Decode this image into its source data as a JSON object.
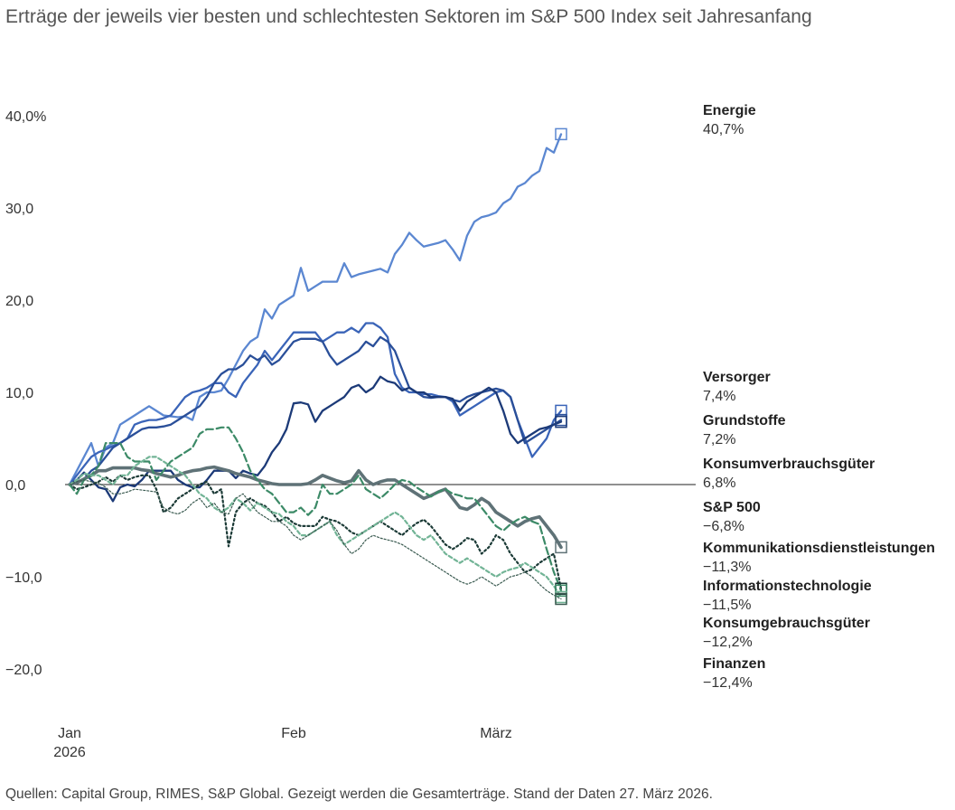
{
  "title": "Erträge der jeweils vier besten und schlechtesten Sektoren im S&P 500 Index seit Jahresanfang",
  "source": "Quellen: Capital Group, RIMES, S&P Global. Gezeigt werden die Gesamterträge. Stand der Daten 27. März 2026.",
  "chart_data": {
    "type": "line",
    "title": "Erträge der jeweils vier besten und schlechtesten Sektoren im S&P 500 Index seit Jahresanfang",
    "xlabel": "",
    "ylabel": "",
    "ylim": [
      -23,
      43
    ],
    "grid": false,
    "x": [
      0,
      1,
      2,
      3,
      4,
      5,
      6,
      7,
      8,
      9,
      10,
      11,
      12,
      13,
      14,
      15,
      16,
      17,
      18,
      19,
      20,
      21,
      22,
      23,
      24,
      25,
      26,
      27,
      28,
      29,
      30,
      31,
      32,
      33,
      34,
      35,
      36,
      37,
      38,
      39,
      40,
      41,
      42,
      43,
      44,
      45,
      46,
      47,
      48,
      49,
      50,
      51,
      52,
      53,
      54,
      55,
      56,
      57,
      58,
      59,
      60,
      61,
      62,
      63,
      64,
      65,
      66,
      67,
      68,
      69,
      70,
      71,
      72,
      73,
      74,
      75,
      76,
      77,
      78,
      79,
      80,
      81,
      82,
      83,
      84,
      85,
      86
    ],
    "x_ticks": [
      {
        "x": 0,
        "label": "Jan",
        "label2": "2026"
      },
      {
        "x": 31,
        "label": "Feb",
        "label2": ""
      },
      {
        "x": 59,
        "label": "März",
        "label2": ""
      }
    ],
    "y_ticks": [
      {
        "value": 40,
        "label": "40,0%"
      },
      {
        "value": 30,
        "label": "30,0"
      },
      {
        "value": 20,
        "label": "20,0"
      },
      {
        "value": 10,
        "label": "10,0"
      },
      {
        "value": 0,
        "label": "0,0"
      },
      {
        "value": -10,
        "label": "−10,0"
      },
      {
        "value": -20,
        "label": "−20,0"
      }
    ],
    "series": [
      {
        "name": "Energie",
        "end_label": "40,7%",
        "color": "#5b87d1",
        "dash": "",
        "width": 2.3,
        "values": [
          0,
          1.5,
          3,
          4.5,
          2,
          4,
          4.5,
          6.5,
          7,
          7.5,
          8,
          8.5,
          8,
          7.5,
          7.4,
          7.3,
          7.4,
          7,
          9.5,
          10,
          10,
          10.2,
          11.5,
          13,
          14.5,
          15.5,
          16,
          19,
          18,
          19.5,
          20,
          20.5,
          23.5,
          21,
          21.5,
          22,
          22,
          22,
          24,
          22.5,
          22.8,
          23,
          23.2,
          23.4,
          23,
          25,
          26,
          27.3,
          26.5,
          25.8,
          26,
          26.2,
          26.5,
          25.5,
          24.3,
          27,
          28.5,
          29,
          29.2,
          29.5,
          30.5,
          31,
          32.3,
          32.7,
          33.5,
          34,
          36.5,
          36,
          38,
          40.7,
          40.7,
          40.7,
          40.7,
          40.7,
          40.7,
          40.7,
          40.7,
          40.7,
          40.7,
          40.7,
          40.7,
          40.7,
          40.7,
          40.7,
          40.7,
          40.7,
          40.7
        ]
      },
      {
        "name": "Versorger",
        "end_label": "7,4%",
        "color": "#3a64b8",
        "dash": "",
        "width": 2.3,
        "values": [
          0,
          1,
          2,
          3,
          3.5,
          3.8,
          4.2,
          4.5,
          5,
          6.5,
          6.8,
          7,
          7,
          7.2,
          7.5,
          8.5,
          9.5,
          10,
          10.2,
          10.5,
          11,
          11,
          10,
          9.5,
          11,
          12,
          13,
          14.5,
          13.5,
          14.5,
          15.5,
          16.5,
          16.5,
          16.5,
          16.5,
          15.5,
          16,
          16.5,
          16.5,
          17,
          16.5,
          17.5,
          17.5,
          17,
          16,
          12,
          10.5,
          10,
          10,
          9.8,
          9.8,
          9.6,
          9.5,
          9,
          7.5,
          8,
          8.5,
          9,
          9.5,
          10,
          10.2,
          9.5,
          7,
          5,
          3,
          4,
          5,
          7,
          8,
          7.4,
          7.4,
          7.4,
          7.4,
          7.4,
          7.4,
          7.4,
          7.4,
          7.4,
          7.4,
          7.4,
          7.4,
          7.4,
          7.4,
          7.4,
          7.4,
          7.4,
          7.4
        ]
      },
      {
        "name": "Grundstoffe",
        "end_label": "7,2%",
        "color": "#2a4f99",
        "dash": "",
        "width": 2.3,
        "values": [
          0,
          0.3,
          0.6,
          1.5,
          2,
          3,
          4,
          4.5,
          5,
          5.5,
          6,
          6.2,
          6.2,
          6.3,
          6.5,
          7,
          7.5,
          8,
          8.5,
          9.5,
          11,
          12,
          12.5,
          12.5,
          13,
          14,
          13.5,
          14,
          13,
          13.5,
          14.5,
          15.5,
          15.8,
          15.8,
          15.8,
          15.5,
          14,
          13,
          13.5,
          14,
          14.5,
          15.5,
          15,
          16,
          15.5,
          14.5,
          12.5,
          10.5,
          10,
          9.5,
          9.4,
          9.5,
          9.5,
          9.2,
          9,
          9.5,
          9.8,
          10,
          10.2,
          10.4,
          10.2,
          9.5,
          7,
          4.5,
          5,
          5.5,
          6,
          6.5,
          7,
          7.2,
          7.2,
          7.2,
          7.2,
          7.2,
          7.2,
          7.2,
          7.2,
          7.2,
          7.2,
          7.2,
          7.2,
          7.2,
          7.2,
          7.2,
          7.2,
          7.2,
          7.2
        ]
      },
      {
        "name": "Konsumverbrauchsgüter",
        "end_label": "6,8%",
        "color": "#1c3a78",
        "dash": "",
        "width": 2.3,
        "values": [
          0,
          0.5,
          1.3,
          0.5,
          -0.3,
          -0.5,
          -1.8,
          -0.3,
          0,
          -0.2,
          0.5,
          1.5,
          1.5,
          1.5,
          1.5,
          0.5,
          0,
          -0.3,
          -0.3,
          0.5,
          1.5,
          1.5,
          1.5,
          0.7,
          1.5,
          1.2,
          1,
          2,
          3.5,
          4.5,
          6,
          8.8,
          8.9,
          8.7,
          6.8,
          8,
          8.5,
          9,
          9.5,
          10.5,
          10.8,
          10,
          10.5,
          11.7,
          11.2,
          11,
          10.2,
          10.5,
          10,
          10,
          9.5,
          9.5,
          9.5,
          9.3,
          8,
          9,
          9.5,
          10,
          10.5,
          10,
          8,
          5.5,
          4.5,
          5,
          5.5,
          6,
          6.2,
          6.5,
          6.8,
          6.8,
          6.8,
          6.8,
          6.8,
          6.8,
          6.8,
          6.8,
          6.8,
          6.8,
          6.8,
          6.8,
          6.8,
          6.8,
          6.8,
          6.8,
          6.8,
          6.8,
          6.8
        ]
      },
      {
        "name": "S&P 500",
        "end_label": "−6,8%",
        "color": "#5f7277",
        "dash": "",
        "width": 3.6,
        "values": [
          0,
          0.2,
          0.6,
          1,
          1.5,
          1.5,
          1.8,
          1.8,
          1.8,
          1.8,
          1.6,
          1.5,
          1.2,
          1,
          0.8,
          1,
          1.3,
          1.5,
          1.6,
          1.8,
          1.9,
          1.7,
          1.5,
          1.2,
          1,
          0.8,
          0.5,
          0.3,
          0.1,
          0,
          0,
          0,
          0,
          0.1,
          0.5,
          1,
          0.7,
          0.4,
          0.2,
          0.4,
          1.5,
          0.5,
          0,
          0.3,
          0.5,
          0.5,
          0,
          -0.5,
          -1,
          -1.5,
          -1.2,
          -0.8,
          -0.5,
          -1.5,
          -2.5,
          -2.7,
          -2.2,
          -1.5,
          -2,
          -3,
          -3.5,
          -4,
          -4.5,
          -4,
          -3.7,
          -3.5,
          -4.5,
          -5.5,
          -6.8,
          -6.8,
          -6.8,
          -6.8,
          -6.8,
          -6.8,
          -6.8,
          -6.8,
          -6.8,
          -6.8,
          -6.8,
          -6.8,
          -6.8,
          -6.8,
          -6.8,
          -6.8,
          -6.8,
          -6.8,
          -6.8
        ]
      },
      {
        "name": "Kommunikationsdienstleistungen",
        "end_label": "−11,3%",
        "color": "#1b3a36",
        "dash": "2 3",
        "width": 2.2,
        "values": [
          0,
          -0.5,
          -0.3,
          0,
          0.3,
          0.8,
          0.3,
          1,
          0.5,
          0.8,
          1,
          1,
          -0.5,
          -3,
          -2.5,
          -1.5,
          -1,
          -0.5,
          0,
          0.3,
          -1,
          -0.5,
          -6.7,
          -3,
          -2,
          -1.5,
          -2,
          -2.3,
          -3,
          -4,
          -3.5,
          -4.2,
          -4.5,
          -4.5,
          -4.5,
          -3.5,
          -3.8,
          -4,
          -4.5,
          -5.2,
          -5.5,
          -5,
          -4.5,
          -4,
          -4.5,
          -5,
          -5.5,
          -4.8,
          -4.2,
          -3.8,
          -4.5,
          -5.5,
          -6.5,
          -7,
          -6.5,
          -5.8,
          -6,
          -7.5,
          -6.8,
          -5.5,
          -6,
          -7.5,
          -8.5,
          -9.5,
          -9.2,
          -8.5,
          -8,
          -7.5,
          -11.3,
          -11.3,
          -11.3,
          -11.3,
          -11.3,
          -11.3,
          -11.3,
          -11.3,
          -11.3,
          -11.3,
          -11.3,
          -11.3,
          -11.3,
          -11.3,
          -11.3,
          -11.3,
          -11.3,
          -11.3,
          -11.3
        ]
      },
      {
        "name": "Informationstechnologie",
        "end_label": "−11,5%",
        "color": "#3c8a67",
        "dash": "8 4",
        "width": 2.2,
        "values": [
          0,
          -1,
          0.5,
          1,
          2,
          4.5,
          4.5,
          4.5,
          3,
          2.5,
          2.5,
          2.5,
          0.5,
          1.5,
          2.5,
          3,
          3.5,
          4,
          5.5,
          6,
          6,
          6.2,
          6.2,
          5,
          3.5,
          1.5,
          0.5,
          -0.5,
          -1,
          -2,
          -3,
          -3,
          -2.5,
          -3.3,
          -2.5,
          0,
          -1,
          -1,
          -0.5,
          0,
          1,
          -0.5,
          -1,
          -1.5,
          -0.8,
          0,
          0.5,
          0.3,
          -0.3,
          -0.8,
          -1.3,
          -0.8,
          -0.5,
          -1,
          -1.2,
          -1.5,
          -1.5,
          -2.5,
          -3.5,
          -4.5,
          -5,
          -4.3,
          -3.8,
          -3.5,
          -4,
          -4.3,
          -7,
          -9.5,
          -11.5,
          -11.5,
          -11.5,
          -11.5,
          -11.5,
          -11.5,
          -11.5,
          -11.5,
          -11.5,
          -11.5,
          -11.5,
          -11.5,
          -11.5,
          -11.5,
          -11.5,
          -11.5,
          -11.5,
          -11.5,
          -11.5
        ]
      },
      {
        "name": "Konsumgebrauchsgüter",
        "end_label": "−12,2%",
        "color": "#72b496",
        "dash": "4 3",
        "width": 2.2,
        "values": [
          0,
          0.5,
          1.2,
          1,
          1,
          0.5,
          0,
          1,
          1,
          2,
          2.5,
          3,
          3,
          2.5,
          2,
          1.5,
          1,
          0,
          -1,
          -1.5,
          -2.5,
          -3,
          -2.5,
          -1.5,
          -2,
          -2.8,
          -2,
          -2.5,
          -3,
          -3.2,
          -4,
          -4.5,
          -5.5,
          -5.5,
          -5,
          -4.5,
          -4,
          -5.5,
          -6.5,
          -6,
          -5.5,
          -5,
          -4.5,
          -4,
          -3.5,
          -3,
          -3.5,
          -4.5,
          -5.5,
          -6,
          -5.5,
          -6.5,
          -7.5,
          -8,
          -8.5,
          -8,
          -8.5,
          -9,
          -9.5,
          -10,
          -9.5,
          -9.2,
          -9,
          -8.5,
          -9,
          -9.5,
          -10,
          -11,
          -12.2,
          -12.2,
          -12.2,
          -12.2,
          -12.2,
          -12.2,
          -12.2,
          -12.2,
          -12.2,
          -12.2,
          -12.2,
          -12.2,
          -12.2,
          -12.2,
          -12.2,
          -12.2,
          -12.2,
          -12.2,
          -12.2
        ]
      },
      {
        "name": "Finanzen",
        "end_label": "−12,4%",
        "color": "#3a5a50",
        "dash": "2 2",
        "width": 1.2,
        "values": [
          0,
          0.3,
          0.5,
          0.3,
          0.2,
          -0.3,
          -1,
          -1,
          -0.8,
          -0.5,
          -0.6,
          -0.7,
          -0.8,
          -2.5,
          -3,
          -3.2,
          -2.8,
          -2,
          -1.5,
          -2.5,
          -2,
          -3,
          -3.2,
          -1.5,
          -1,
          -2,
          -3,
          -3.5,
          -4,
          -4,
          -4.5,
          -5.5,
          -6,
          -5.5,
          -5,
          -4.5,
          -4,
          -5,
          -6.5,
          -7.5,
          -7,
          -6,
          -5.5,
          -5.8,
          -6,
          -6.2,
          -6.5,
          -7,
          -7.5,
          -8,
          -8.5,
          -9,
          -9.5,
          -10,
          -10.5,
          -10.8,
          -10.5,
          -10,
          -10.5,
          -11,
          -10.5,
          -10,
          -9.8,
          -9.5,
          -10,
          -10.8,
          -11.5,
          -12,
          -12.4,
          -12.4,
          -12.4,
          -12.4,
          -12.4,
          -12.4,
          -12.4,
          -12.4,
          -12.4,
          -12.4,
          -12.4,
          -12.4,
          -12.4,
          -12.4,
          -12.4,
          -12.4,
          -12.4,
          -12.4,
          -12.4
        ]
      }
    ]
  }
}
